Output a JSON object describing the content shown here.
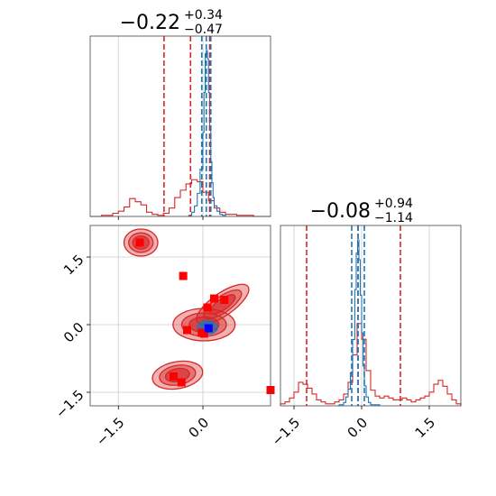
{
  "chart_data": {
    "type": "corner",
    "parameters": [
      {
        "title": {
          "median": "−0.22",
          "upper": "+0.34",
          "lower": "−0.47"
        },
        "range": [
          -2.0,
          1.2
        ],
        "ticks": [
          {
            "value": -1.5,
            "label": "−1.5"
          },
          {
            "value": 0.0,
            "label": "0.0"
          }
        ]
      },
      {
        "title": {
          "median": "−0.08",
          "upper": "+0.94",
          "lower": "−1.14"
        },
        "range": [
          -1.8,
          2.2
        ],
        "ticks": [
          {
            "value": -1.5,
            "label": "−1.5"
          },
          {
            "value": 0.0,
            "label": "0.0"
          },
          {
            "value": 1.5,
            "label": "1.5"
          }
        ]
      }
    ],
    "series": [
      {
        "color": "#d62728"
      },
      {
        "color": "#1f77b4"
      }
    ],
    "quantile_lines": {
      "param1": {
        "red": [
          -0.69,
          -0.22,
          0.12
        ],
        "blue": [
          -0.02,
          0.06,
          0.14
        ]
      },
      "param2": {
        "red": [
          -1.22,
          -0.08,
          0.86
        ],
        "blue": [
          -0.22,
          -0.08,
          0.06
        ]
      }
    },
    "histograms": {
      "param1": {
        "red_bins": [
          -2.0,
          -1.9,
          -1.8,
          -1.7,
          -1.6,
          -1.5,
          -1.4,
          -1.3,
          -1.2,
          -1.1,
          -1.0,
          -0.9,
          -0.8,
          -0.7,
          -0.6,
          -0.5,
          -0.4,
          -0.3,
          -0.2,
          -0.1,
          0.0,
          0.1,
          0.2,
          0.3,
          0.4,
          0.5,
          0.6,
          0.7,
          0.8,
          0.9,
          1.0,
          1.1,
          1.2
        ],
        "red_counts": [
          0,
          0,
          1,
          1,
          3,
          5,
          9,
          17,
          14,
          11,
          4,
          2,
          1,
          3,
          8,
          18,
          25,
          31,
          35,
          33,
          23,
          15,
          8,
          4,
          2,
          2,
          1,
          1,
          1,
          0,
          0,
          0
        ],
        "blue_bins": [
          -0.25,
          -0.2,
          -0.15,
          -0.1,
          -0.05,
          0.0,
          0.02,
          0.04,
          0.06,
          0.08,
          0.1,
          0.12,
          0.14,
          0.16,
          0.18,
          0.2,
          0.25,
          0.3,
          0.35,
          0.4
        ],
        "blue_counts": [
          1,
          4,
          10,
          22,
          45,
          80,
          118,
          155,
          158,
          150,
          118,
          82,
          52,
          32,
          18,
          10,
          5,
          2,
          1
        ]
      },
      "param2": {
        "red_bins": [
          -1.8,
          -1.7,
          -1.6,
          -1.5,
          -1.4,
          -1.3,
          -1.2,
          -1.1,
          -1.0,
          -0.9,
          -0.8,
          -0.7,
          -0.6,
          -0.5,
          -0.4,
          -0.3,
          -0.2,
          -0.1,
          0.0,
          0.1,
          0.2,
          0.3,
          0.4,
          0.5,
          0.6,
          0.7,
          0.8,
          0.9,
          1.0,
          1.1,
          1.2,
          1.3,
          1.4,
          1.5,
          1.6,
          1.7,
          1.8,
          1.9,
          2.0,
          2.1,
          2.2
        ],
        "red_counts": [
          1,
          2,
          4,
          7,
          12,
          11,
          9,
          6,
          3,
          2,
          1,
          1,
          2,
          3,
          6,
          12,
          26,
          42,
          34,
          18,
          8,
          5,
          4,
          5,
          4,
          3,
          3,
          4,
          3,
          2,
          3,
          4,
          5,
          7,
          11,
          13,
          10,
          6,
          3,
          1
        ],
        "blue_bins": [
          -0.5,
          -0.4,
          -0.35,
          -0.3,
          -0.25,
          -0.2,
          -0.15,
          -0.12,
          -0.09,
          -0.06,
          -0.03,
          0.0,
          0.03,
          0.06,
          0.1,
          0.15,
          0.2,
          0.3,
          0.4
        ],
        "blue_counts": [
          1,
          3,
          8,
          15,
          30,
          60,
          105,
          138,
          150,
          132,
          100,
          66,
          36,
          18,
          8,
          3,
          1,
          1
        ]
      }
    },
    "scatter_2d": {
      "red_points": [
        [
          -1.12,
          1.82
        ],
        [
          -0.35,
          1.08
        ],
        [
          -0.28,
          -0.12
        ],
        [
          -0.02,
          -0.18
        ],
        [
          0.02,
          -0.2
        ],
        [
          0.08,
          0.38
        ],
        [
          0.2,
          0.58
        ],
        [
          0.38,
          0.55
        ],
        [
          -0.52,
          -1.15
        ],
        [
          -0.38,
          -1.28
        ],
        [
          1.2,
          -1.45
        ]
      ],
      "blue_points": [
        [
          0.1,
          -0.08
        ]
      ],
      "red_contours": [
        {
          "cx": -1.1,
          "cy": 1.82,
          "rx": 0.3,
          "ry": 0.3,
          "angle": 0
        },
        {
          "cx": -0.45,
          "cy": -1.12,
          "rx": 0.45,
          "ry": 0.3,
          "angle": 10
        },
        {
          "cx": 0.02,
          "cy": 0.0,
          "rx": 0.55,
          "ry": 0.36,
          "angle": 0
        },
        {
          "cx": 0.35,
          "cy": 0.45,
          "rx": 0.55,
          "ry": 0.25,
          "angle": 35
        }
      ],
      "blue_contours": [
        {
          "cx": 0.08,
          "cy": -0.06,
          "rx": 0.18,
          "ry": 0.15,
          "angle": 0
        }
      ]
    }
  }
}
